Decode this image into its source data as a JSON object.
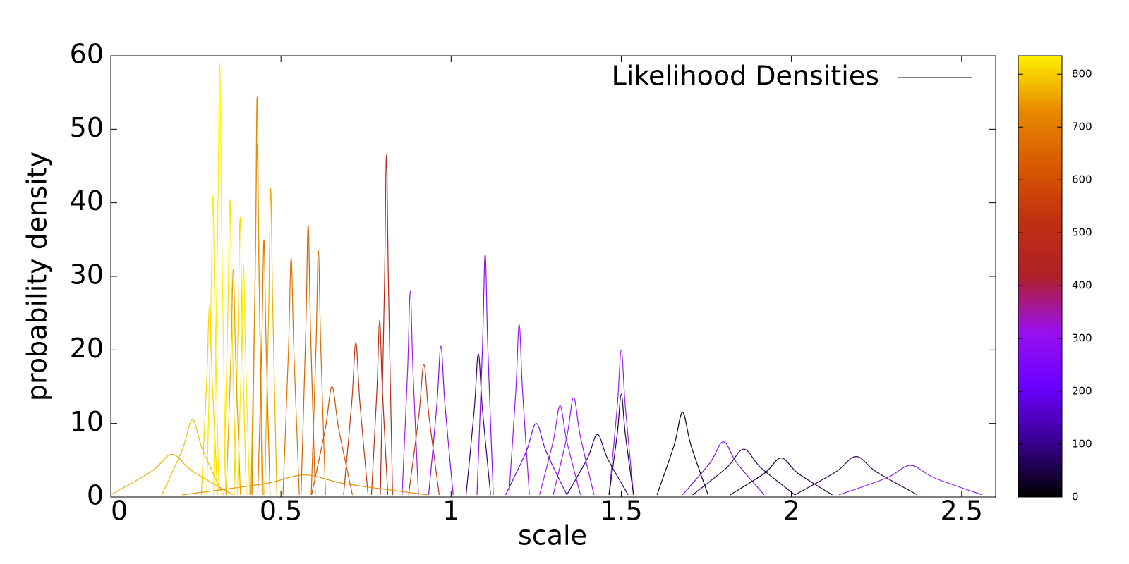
{
  "chart_data": {
    "type": "line",
    "xlabel": "scale",
    "ylabel": "probability density",
    "xlim": [
      0,
      2.6
    ],
    "xticks": [
      0,
      0.5,
      1,
      1.5,
      2,
      2.5
    ],
    "ylim": [
      0,
      60
    ],
    "yticks": [
      0,
      10,
      20,
      30,
      40,
      50,
      60
    ],
    "legend": {
      "label": "Likelihood Densities",
      "color": "#000000",
      "position": "top right"
    },
    "colorbar": {
      "lim": [
        0,
        835
      ],
      "ticks": [
        0,
        100,
        200,
        300,
        400,
        500,
        600,
        700,
        800
      ],
      "colors": [
        "#000000",
        "#3a0090",
        "#6a00ff",
        "#9a10f0",
        "#b0202a",
        "#c03010",
        "#d85800",
        "#e88a00",
        "#fff000"
      ]
    },
    "series": [
      {
        "color": "#ffef00",
        "x": [
          0.302,
          0.314,
          0.32,
          0.326,
          0.338
        ],
        "values": [
          0.3,
          36,
          59,
          36,
          0.3
        ]
      },
      {
        "color": "#ffe800",
        "x": [
          0.282,
          0.294,
          0.3,
          0.306,
          0.318
        ],
        "values": [
          0.3,
          25,
          41,
          25,
          0.3
        ]
      },
      {
        "color": "#ffe000",
        "x": [
          0.332,
          0.344,
          0.35,
          0.356,
          0.368
        ],
        "values": [
          0.3,
          24.7,
          40.5,
          24.7,
          0.3
        ]
      },
      {
        "color": "#ffd800",
        "x": [
          0.362,
          0.374,
          0.38,
          0.386,
          0.398
        ],
        "values": [
          0.3,
          23.2,
          38,
          23.2,
          0.3
        ]
      },
      {
        "color": "#ffd000",
        "x": [
          0.266,
          0.282,
          0.29,
          0.298,
          0.314
        ],
        "values": [
          0.3,
          15.9,
          26,
          15.9,
          0.3
        ]
      },
      {
        "color": "#e88a00",
        "x": [
          0.415,
          0.425,
          0.43,
          0.435,
          0.445
        ],
        "values": [
          0.3,
          33.2,
          54.5,
          33.2,
          0.3
        ]
      },
      {
        "color": "#e99000",
        "x": [
          0.412,
          0.424,
          0.43,
          0.436,
          0.448
        ],
        "values": [
          0.3,
          29.3,
          48,
          29.3,
          0.3
        ]
      },
      {
        "color": "#f0b000",
        "x": [
          0.452,
          0.464,
          0.47,
          0.476,
          0.488
        ],
        "values": [
          0.3,
          25.6,
          42,
          25.6,
          0.3
        ]
      },
      {
        "color": "#e07800",
        "x": [
          0.432,
          0.444,
          0.45,
          0.456,
          0.468
        ],
        "values": [
          0.3,
          21.4,
          35,
          21.4,
          0.3
        ]
      },
      {
        "color": "#e07000",
        "x": [
          0.506,
          0.522,
          0.53,
          0.538,
          0.554
        ],
        "values": [
          0.3,
          19.8,
          32.5,
          19.8,
          0.3
        ]
      },
      {
        "color": "#d86000",
        "x": [
          0.559,
          0.573,
          0.58,
          0.587,
          0.601
        ],
        "values": [
          0.3,
          22.6,
          37,
          22.6,
          0.3
        ]
      },
      {
        "color": "#d86800",
        "x": [
          0.589,
          0.603,
          0.61,
          0.617,
          0.631
        ],
        "values": [
          0.3,
          20.4,
          33.5,
          20.4,
          0.3
        ]
      },
      {
        "color": "#b82818",
        "x": [
          0.792,
          0.804,
          0.81,
          0.816,
          0.828
        ],
        "values": [
          0.3,
          28.4,
          46.5,
          28.4,
          0.3
        ]
      },
      {
        "color": "#b83010",
        "x": [
          0.766,
          0.782,
          0.79,
          0.798,
          0.814
        ],
        "values": [
          0.3,
          14.6,
          24,
          14.6,
          0.3
        ]
      },
      {
        "color": "#c03810",
        "x": [
          0.684,
          0.708,
          0.72,
          0.732,
          0.756
        ],
        "values": [
          0.3,
          12.8,
          21,
          12.8,
          0.3
        ]
      },
      {
        "color": "#a020e0",
        "x": [
          0.856,
          0.872,
          0.88,
          0.888,
          0.904
        ],
        "values": [
          0.3,
          17.1,
          28,
          17.1,
          0.3
        ]
      },
      {
        "color": "#9010f0",
        "x": [
          1.076,
          1.092,
          1.1,
          1.108,
          1.124
        ],
        "values": [
          0.3,
          20.1,
          33,
          20.1,
          0.3
        ]
      },
      {
        "color": "#9a18f0",
        "x": [
          1.17,
          1.19,
          1.2,
          1.21,
          1.23
        ],
        "values": [
          0.3,
          14.3,
          23.5,
          14.3,
          0.3
        ]
      },
      {
        "color": "#9a20f0",
        "x": [
          1.464,
          1.488,
          1.5,
          1.512,
          1.536
        ],
        "values": [
          0.3,
          12.2,
          20,
          12.2,
          0.3
        ]
      },
      {
        "color": "#200040",
        "x": [
          1.464,
          1.488,
          1.5,
          1.512,
          1.536
        ],
        "values": [
          0.3,
          8.5,
          14,
          8.5,
          0.3
        ]
      },
      {
        "color": "#400070",
        "x": [
          1.044,
          1.068,
          1.08,
          1.092,
          1.116
        ],
        "values": [
          0.3,
          11.9,
          19.5,
          11.9,
          0.3
        ]
      },
      {
        "color": "#8a10f0",
        "x": [
          0.934,
          0.958,
          0.97,
          0.982,
          1.006
        ],
        "values": [
          0.3,
          12.5,
          20.5,
          12.5,
          0.3
        ]
      },
      {
        "color": "#180020",
        "x": [
          1.605,
          1.655,
          1.68,
          1.705,
          1.755
        ],
        "values": [
          0.3,
          7,
          11.5,
          7,
          0.3
        ]
      },
      {
        "color": "#8010e8",
        "x": [
          1.68,
          1.76,
          1.8,
          1.84,
          1.92
        ],
        "values": [
          0.3,
          4.6,
          7.5,
          4.6,
          0.3
        ]
      },
      {
        "color": "#300050",
        "x": [
          1.71,
          1.81,
          1.86,
          1.91,
          2.01
        ],
        "values": [
          0.3,
          4,
          6.5,
          4,
          0.3
        ]
      },
      {
        "color": "#200040",
        "x": [
          1.82,
          1.92,
          1.97,
          2.02,
          2.12
        ],
        "values": [
          0.3,
          3.2,
          5.3,
          3.2,
          0.3
        ]
      },
      {
        "color": "#300050",
        "x": [
          2.01,
          2.13,
          2.19,
          2.25,
          2.37
        ],
        "values": [
          0.3,
          3.4,
          5.5,
          3.4,
          0.3
        ]
      },
      {
        "color": "#9020f0",
        "x": [
          2.14,
          2.28,
          2.35,
          2.42,
          2.56
        ],
        "values": [
          0.3,
          2.6,
          4.3,
          2.6,
          0.3
        ]
      },
      {
        "color": "#f0c000",
        "x": [
          0.15,
          0.21,
          0.24,
          0.27,
          0.33
        ],
        "values": [
          0.3,
          6.4,
          10.5,
          6.4,
          0.3
        ]
      },
      {
        "color": "#f0b000",
        "x": [
          0,
          0.12,
          0.18,
          0.24,
          0.36
        ],
        "values": [
          0.3,
          3.5,
          5.8,
          3.5,
          0.3
        ]
      },
      {
        "color": "#9a18f0",
        "x": [
          1.3,
          1.34,
          1.36,
          1.38,
          1.42
        ],
        "values": [
          0.3,
          8.2,
          13.5,
          8.2,
          0.3
        ]
      },
      {
        "color": "#a020f0",
        "x": [
          1.26,
          1.3,
          1.32,
          1.34,
          1.38
        ],
        "values": [
          0.3,
          7.6,
          12.4,
          7.6,
          0.3
        ]
      },
      {
        "color": "#d05000",
        "x": [
          0.59,
          0.63,
          0.65,
          0.67,
          0.71
        ],
        "values": [
          0.3,
          9.2,
          15,
          9.2,
          0.3
        ]
      },
      {
        "color": "#e09000",
        "x": [
          0.21,
          0.45,
          0.57,
          0.69,
          0.93
        ],
        "values": [
          0.3,
          1.8,
          3,
          1.8,
          0.3
        ]
      },
      {
        "color": "#300060",
        "x": [
          1.34,
          1.4,
          1.43,
          1.46,
          1.52
        ],
        "values": [
          0.3,
          5.2,
          8.5,
          5.2,
          0.3
        ]
      },
      {
        "color": "#c03810",
        "x": [
          0.875,
          0.905,
          0.92,
          0.935,
          0.965
        ],
        "values": [
          0.3,
          11,
          18,
          11,
          0.3
        ]
      },
      {
        "color": "#6010e0",
        "x": [
          1.16,
          1.22,
          1.25,
          1.28,
          1.34
        ],
        "values": [
          0.3,
          6.1,
          10,
          6.1,
          0.3
        ]
      },
      {
        "color": "#ffe800",
        "x": [
          0.372,
          0.384,
          0.39,
          0.396,
          0.408
        ],
        "values": [
          0.3,
          19.2,
          31.5,
          19.2,
          0.3
        ]
      },
      {
        "color": "#e8a000",
        "x": [
          0.339,
          0.353,
          0.36,
          0.367,
          0.381
        ],
        "values": [
          0.3,
          18.9,
          31,
          18.9,
          0.3
        ]
      }
    ]
  }
}
